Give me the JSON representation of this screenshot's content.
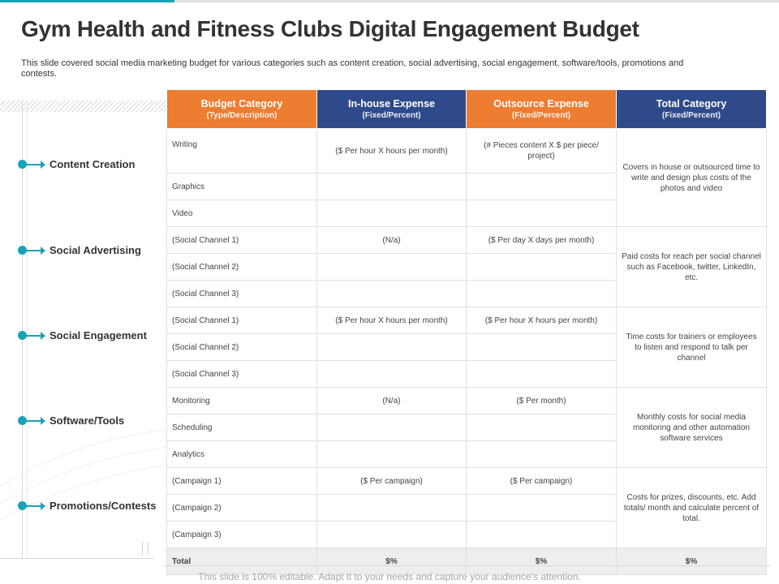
{
  "slide": {
    "title": "Gym Health and Fitness Clubs Digital Engagement Budget",
    "subtitle": "This slide covered social media marketing budget for various categories such as content creation, social advertising, social engagement, software/tools, promotions and contests.",
    "footer": "This slide is 100% editable. Adapt it to your needs and capture your audience’s attention."
  },
  "categories": [
    "Content Creation",
    "Social Advertising",
    "Social Engagement",
    "Software/Tools",
    "Promotions/Contests"
  ],
  "table": {
    "headers": [
      {
        "title": "Budget Category",
        "sub": "(Type/Description)"
      },
      {
        "title": "In-house Expense",
        "sub": "(Fixed/Percent)"
      },
      {
        "title": "Outsource Expense",
        "sub": "(Fixed/Percent)"
      },
      {
        "title": "Total Category",
        "sub": "(Fixed/Percent)"
      }
    ],
    "groups": [
      {
        "rows": [
          "Writing",
          "Graphics",
          "Video"
        ],
        "inhouse": "($ Per hour X hours per month)",
        "outsource": "(# Pieces content X $ per piece/ project)",
        "total": "Covers in house or outsourced time to write and design plus costs of the photos and video"
      },
      {
        "rows": [
          "(Social Channel 1)",
          "(Social Channel 2)",
          "(Social Channel 3)"
        ],
        "inhouse": "(N/a)",
        "outsource": "($ Per day X days per month)",
        "total": "Paid costs for reach per social channel such as Facebook, twitter, LinkedIn,  etc."
      },
      {
        "rows": [
          "(Social Channel 1)",
          "(Social Channel 2)",
          "(Social Channel 3)"
        ],
        "inhouse": "($ Per hour X hours per month)",
        "outsource": "($ Per hour X hours per month)",
        "total": "Time  costs for trainers or employees to listen and respond to talk per channel"
      },
      {
        "rows": [
          "Monitoring",
          "Scheduling",
          "Analytics"
        ],
        "inhouse": "(N/a)",
        "outsource": "($ Per  month)",
        "total": "Monthly costs for social media monitoring and other automation software services"
      },
      {
        "rows": [
          "(Campaign 1)",
          "(Campaign 2)",
          "(Campaign 3)"
        ],
        "inhouse": "($ Per campaign)",
        "outsource": "($ Per campaign)",
        "total": "Costs for prizes, discounts, etc. Add totals/ month and calculate percent of total."
      }
    ],
    "total_row": {
      "label": "Total",
      "inhouse": "$%",
      "outsource": "$%",
      "total": "$%"
    }
  },
  "colors": {
    "accent": "#19a3b8",
    "header_orange": "#ed7d31",
    "header_navy": "#2f4a8a"
  }
}
